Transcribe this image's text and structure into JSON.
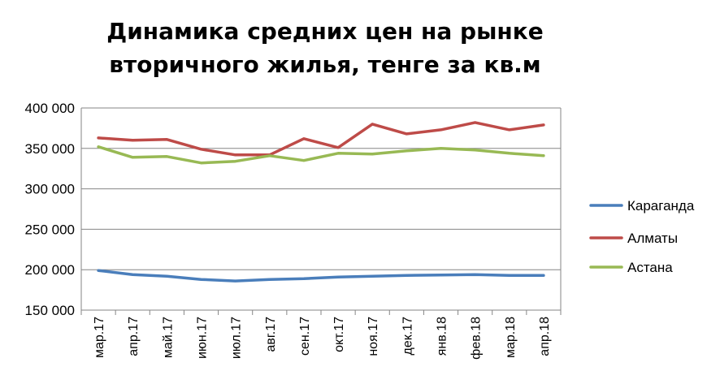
{
  "chart_data": {
    "type": "line",
    "title_line1": "Динамика средних цен на рынке",
    "title_line2": "вторичного жилья, тенге за кв.м",
    "xlabel": "",
    "ylabel": "",
    "categories": [
      "мар.17",
      "апр.17",
      "май.17",
      "июн.17",
      "июл.17",
      "авг.17",
      "сен.17",
      "окт.17",
      "ноя.17",
      "дек.17",
      "янв.18",
      "фев.18",
      "мар.18",
      "апр.18"
    ],
    "ylim": [
      150000,
      400000
    ],
    "yticks": [
      150000,
      200000,
      250000,
      300000,
      350000,
      400000
    ],
    "ytick_labels": [
      "150 000",
      "200 000",
      "250 000",
      "300 000",
      "350 000",
      "400 000"
    ],
    "grid": true,
    "legend_position": "right",
    "series": [
      {
        "name": "Караганда",
        "color": "#4a7ebb",
        "values": [
          199000,
          194000,
          192000,
          188000,
          186000,
          188000,
          189000,
          191000,
          192000,
          193000,
          193500,
          194000,
          193000,
          193000
        ]
      },
      {
        "name": "Алматы",
        "color": "#be4b48",
        "values": [
          363000,
          360000,
          361000,
          349000,
          342000,
          342000,
          362000,
          351000,
          380000,
          368000,
          373000,
          382000,
          373000,
          379000
        ]
      },
      {
        "name": "Астана",
        "color": "#98b954",
        "values": [
          352000,
          339000,
          340000,
          332000,
          334000,
          341000,
          335000,
          344000,
          343000,
          347000,
          350000,
          348000,
          344000,
          341000
        ]
      }
    ]
  }
}
